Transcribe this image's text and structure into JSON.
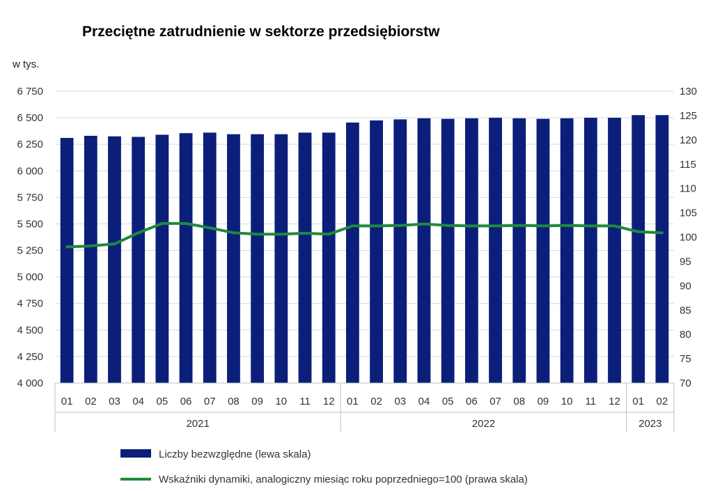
{
  "chart_data": {
    "type": "bar",
    "title": "Przeciętne zatrudnienie w sektorze przedsiębiorstw",
    "y_unit_label": "w tys.",
    "categories": [
      "01",
      "02",
      "03",
      "04",
      "05",
      "06",
      "07",
      "08",
      "09",
      "10",
      "11",
      "12",
      "01",
      "02",
      "03",
      "04",
      "05",
      "06",
      "07",
      "08",
      "09",
      "10",
      "11",
      "12",
      "01",
      "02"
    ],
    "year_groups": [
      {
        "label": "2021",
        "start": 0,
        "count": 12
      },
      {
        "label": "2022",
        "start": 12,
        "count": 12
      },
      {
        "label": "2023",
        "start": 24,
        "count": 2
      }
    ],
    "series": [
      {
        "name": "Liczby bezwzględne (lewa skala)",
        "type": "bar",
        "axis": "left",
        "color": "#0b1f7a",
        "values": [
          6310,
          6330,
          6325,
          6320,
          6340,
          6355,
          6360,
          6345,
          6345,
          6345,
          6360,
          6360,
          6455,
          6475,
          6485,
          6495,
          6490,
          6495,
          6500,
          6495,
          6490,
          6495,
          6500,
          6500,
          6525,
          6525
        ]
      },
      {
        "name": "Wskaźniki dynamiki, analogiczny miesiąc roku poprzedniego=100 (prawa skala)",
        "type": "line",
        "axis": "right",
        "color": "#1e8a3c",
        "values": [
          98.0,
          98.2,
          98.6,
          100.9,
          102.8,
          102.8,
          101.9,
          100.9,
          100.6,
          100.6,
          100.8,
          100.6,
          102.3,
          102.3,
          102.4,
          102.7,
          102.4,
          102.3,
          102.3,
          102.4,
          102.3,
          102.4,
          102.3,
          102.3,
          101.1,
          100.9
        ]
      }
    ],
    "left_axis": {
      "min": 4000,
      "max": 6750,
      "step": 250,
      "tick_labels": [
        "4 000",
        "4 250",
        "4 500",
        "4 750",
        "5 000",
        "5 250",
        "5 500",
        "5 750",
        "6 000",
        "6 250",
        "6 500",
        "6 750"
      ]
    },
    "right_axis": {
      "min": 70,
      "max": 130,
      "step": 5,
      "tick_labels": [
        "70",
        "75",
        "80",
        "85",
        "90",
        "95",
        "100",
        "105",
        "110",
        "115",
        "120",
        "125",
        "130"
      ]
    },
    "grid": true,
    "legend_position": "bottom"
  }
}
